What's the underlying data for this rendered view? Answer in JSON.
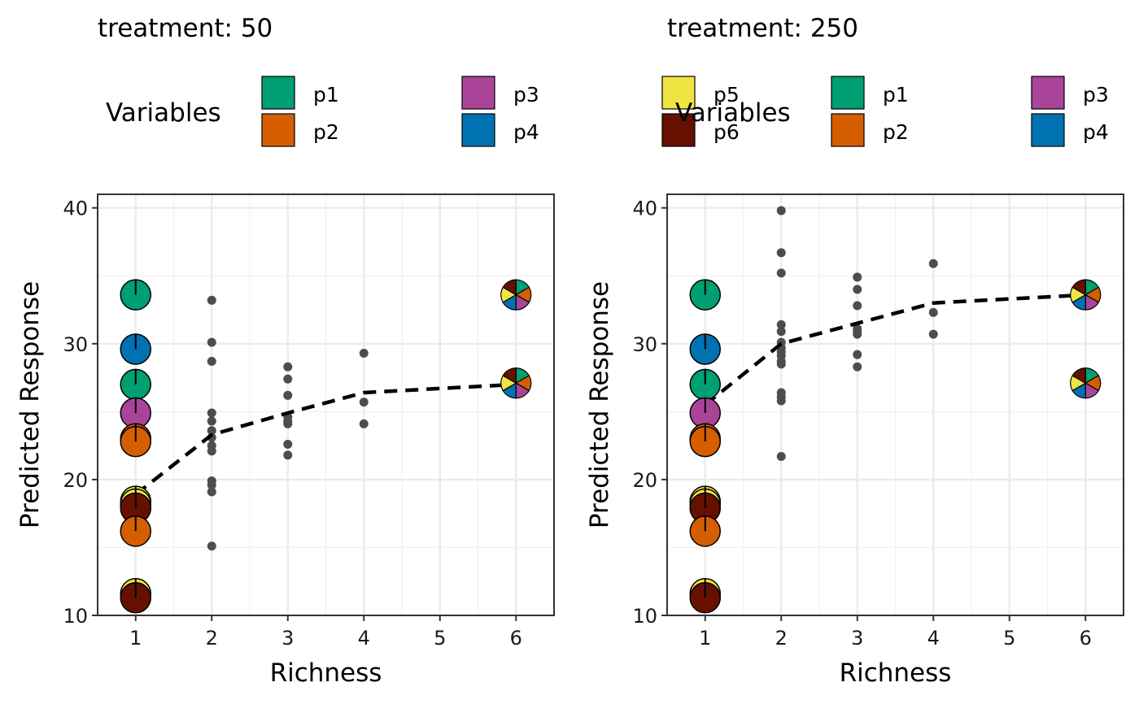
{
  "legend": {
    "title": "Variables",
    "items": [
      {
        "label": "p1",
        "color": "#009E73"
      },
      {
        "label": "p2",
        "color": "#D55E00"
      },
      {
        "label": "p3",
        "color": "#AA4499"
      },
      {
        "label": "p4",
        "color": "#0072B2"
      },
      {
        "label": "p5",
        "color": "#F0E442"
      },
      {
        "label": "p6",
        "color": "#661100"
      }
    ]
  },
  "chart_data": [
    {
      "type": "scatter",
      "title": "treatment: 50",
      "xlabel": "Richness",
      "ylabel": "Predicted Response",
      "xlim": [
        0.5,
        6.5
      ],
      "ylim": [
        10,
        41
      ],
      "xticks": [
        1,
        2,
        3,
        4,
        5,
        6
      ],
      "yticks": [
        10,
        20,
        30,
        40
      ],
      "grid": true,
      "legend_position": "top",
      "points": {
        "2": [
          33.2,
          30.1,
          28.7,
          24.9,
          24.3,
          23.6,
          23.1,
          22.5,
          22.1,
          19.9,
          19.6,
          19.1,
          15.1
        ],
        "3": [
          28.3,
          27.4,
          26.2,
          24.6,
          24.3,
          24.1,
          22.6,
          21.8
        ],
        "4": [
          29.3,
          25.7,
          24.1
        ]
      },
      "trend": {
        "x": [
          1,
          2,
          3,
          4,
          5,
          6
        ],
        "y": [
          18.9,
          23.3,
          24.9,
          26.4,
          26.7,
          27.0
        ]
      },
      "monocultures": [
        {
          "y": 33.6,
          "variable": "p1"
        },
        {
          "y": 29.6,
          "variable": "p4"
        },
        {
          "y": 27.0,
          "variable": "p1"
        },
        {
          "y": 24.9,
          "variable": "p3"
        },
        {
          "y": 23.0,
          "variable": "p2"
        },
        {
          "y": 22.8,
          "variable": "p2"
        },
        {
          "y": 18.4,
          "variable": "p5"
        },
        {
          "y": 18.2,
          "variable": "p5"
        },
        {
          "y": 17.9,
          "variable": "p6"
        },
        {
          "y": 16.2,
          "variable": "p2"
        },
        {
          "y": 11.6,
          "variable": "p5"
        },
        {
          "y": 11.3,
          "variable": "p6"
        }
      ],
      "mixtures": [
        {
          "x": 6,
          "y": 33.6
        },
        {
          "x": 6,
          "y": 27.1
        }
      ]
    },
    {
      "type": "scatter",
      "title": "treatment: 250",
      "xlabel": "Richness",
      "ylabel": "Predicted Response",
      "xlim": [
        0.5,
        6.5
      ],
      "ylim": [
        10,
        41
      ],
      "xticks": [
        1,
        2,
        3,
        4,
        5,
        6
      ],
      "yticks": [
        10,
        20,
        30,
        40
      ],
      "grid": true,
      "legend_position": "top",
      "points": {
        "2": [
          39.8,
          36.7,
          35.2,
          31.4,
          30.9,
          30.1,
          29.7,
          29.4,
          29.1,
          28.7,
          28.5,
          26.4,
          26.1,
          25.8,
          21.7
        ],
        "3": [
          34.9,
          34.0,
          32.8,
          31.1,
          30.9,
          30.7,
          29.2,
          28.3
        ],
        "4": [
          35.9,
          32.3,
          30.7
        ]
      },
      "trend": {
        "x": [
          1,
          2,
          3,
          4,
          5,
          6
        ],
        "y": [
          25.5,
          30.0,
          31.5,
          33.0,
          33.3,
          33.6
        ]
      },
      "monocultures": [
        {
          "y": 33.6,
          "variable": "p1"
        },
        {
          "y": 29.6,
          "variable": "p4"
        },
        {
          "y": 27.0,
          "variable": "p1"
        },
        {
          "y": 24.9,
          "variable": "p3"
        },
        {
          "y": 23.0,
          "variable": "p2"
        },
        {
          "y": 22.8,
          "variable": "p2"
        },
        {
          "y": 18.4,
          "variable": "p5"
        },
        {
          "y": 18.2,
          "variable": "p5"
        },
        {
          "y": 17.9,
          "variable": "p6"
        },
        {
          "y": 16.2,
          "variable": "p2"
        },
        {
          "y": 11.6,
          "variable": "p5"
        },
        {
          "y": 11.3,
          "variable": "p6"
        }
      ],
      "mixtures": [
        {
          "x": 6,
          "y": 33.6
        },
        {
          "x": 6,
          "y": 27.1
        }
      ]
    }
  ]
}
